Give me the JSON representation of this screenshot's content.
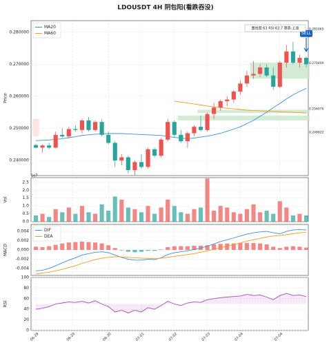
{
  "chart_data": {
    "type": "candlestick",
    "title": "LDOUSDT  4H  阴包阳(看跌吞没)",
    "info": "置信度:63  RSI:63.7  趋势:上涨",
    "price_label": "Price",
    "up_color": "#ef5350",
    "down_color": "#26a69a",
    "ylim": [
      0.2353,
      0.2836
    ],
    "yticks": [
      {
        "value": 0.24,
        "label": "0.240000"
      },
      {
        "value": 0.25,
        "label": "0.250000"
      },
      {
        "value": 0.26,
        "label": "0.260000"
      },
      {
        "value": 0.27,
        "label": "0.270000"
      },
      {
        "value": 0.28,
        "label": "0.280000"
      }
    ],
    "xticks": [
      {
        "value": 0,
        "label": "06-29"
      },
      {
        "value": 5.5,
        "label": "06-29"
      },
      {
        "value": 11,
        "label": "06-30"
      },
      {
        "value": 16,
        "label": "07-01"
      },
      {
        "value": 21,
        "label": "07-02"
      },
      {
        "value": 26,
        "label": "07-03"
      },
      {
        "value": 31,
        "label": "07-04"
      },
      {
        "value": 37,
        "label": "07-04"
      }
    ],
    "candles": [
      [
        0.2448,
        0.2452,
        0.2438,
        0.244
      ],
      [
        0.244,
        0.245,
        0.2425,
        0.2447
      ],
      [
        0.2447,
        0.2455,
        0.2435,
        0.244
      ],
      [
        0.244,
        0.249,
        0.2438,
        0.248
      ],
      [
        0.248,
        0.25,
        0.247,
        0.2475
      ],
      [
        0.2475,
        0.2505,
        0.2468,
        0.2498
      ],
      [
        0.2498,
        0.251,
        0.249,
        0.2495
      ],
      [
        0.2495,
        0.253,
        0.2485,
        0.2525
      ],
      [
        0.2525,
        0.2535,
        0.249,
        0.2495
      ],
      [
        0.2495,
        0.2525,
        0.249,
        0.252
      ],
      [
        0.252,
        0.2528,
        0.2475,
        0.248
      ],
      [
        0.248,
        0.249,
        0.245,
        0.2455
      ],
      [
        0.2455,
        0.246,
        0.238,
        0.24
      ],
      [
        0.24,
        0.242,
        0.2385,
        0.241
      ],
      [
        0.241,
        0.2415,
        0.236,
        0.237
      ],
      [
        0.237,
        0.24,
        0.2355,
        0.2395
      ],
      [
        0.2395,
        0.242,
        0.2375,
        0.238
      ],
      [
        0.238,
        0.244,
        0.2375,
        0.2435
      ],
      [
        0.2435,
        0.244,
        0.241,
        0.2415
      ],
      [
        0.2415,
        0.247,
        0.241,
        0.2465
      ],
      [
        0.2465,
        0.253,
        0.246,
        0.252
      ],
      [
        0.252,
        0.2525,
        0.247,
        0.248
      ],
      [
        0.248,
        0.2495,
        0.2455,
        0.246
      ],
      [
        0.246,
        0.249,
        0.244,
        0.2485
      ],
      [
        0.2485,
        0.251,
        0.2475,
        0.2505
      ],
      [
        0.2505,
        0.254,
        0.249,
        0.2495
      ],
      [
        0.2495,
        0.255,
        0.249,
        0.2545
      ],
      [
        0.2545,
        0.258,
        0.253,
        0.2565
      ],
      [
        0.2565,
        0.259,
        0.2555,
        0.2585
      ],
      [
        0.2585,
        0.26,
        0.257,
        0.259
      ],
      [
        0.259,
        0.262,
        0.258,
        0.2615
      ],
      [
        0.2615,
        0.265,
        0.2605,
        0.264
      ],
      [
        0.264,
        0.268,
        0.263,
        0.2665
      ],
      [
        0.2665,
        0.271,
        0.2655,
        0.267
      ],
      [
        0.267,
        0.27,
        0.266,
        0.269
      ],
      [
        0.269,
        0.27,
        0.266,
        0.2665
      ],
      [
        0.2665,
        0.269,
        0.262,
        0.263
      ],
      [
        0.263,
        0.271,
        0.2625,
        0.2705
      ],
      [
        0.2705,
        0.276,
        0.269,
        0.274
      ],
      [
        0.274,
        0.277,
        0.27,
        0.2705
      ],
      [
        0.2705,
        0.273,
        0.269,
        0.272
      ],
      [
        0.272,
        0.2725,
        0.269,
        0.27
      ]
    ],
    "series": [
      {
        "name": "MA20",
        "color": "#3b8fd9",
        "values": [
          0.2462,
          0.2463,
          0.2464,
          0.2466,
          0.2468,
          0.2471,
          0.2474,
          0.2478,
          0.248,
          0.2482,
          0.2483,
          0.2484,
          0.2484,
          0.2484,
          0.2483,
          0.2482,
          0.2481,
          0.248,
          0.2479,
          0.2478,
          0.2475,
          0.2472,
          0.247,
          0.2468,
          0.247,
          0.2473,
          0.2476,
          0.248,
          0.2485,
          0.2491,
          0.2498,
          0.2505,
          0.2515,
          0.2525,
          0.2538,
          0.255,
          0.2565,
          0.2578,
          0.2592,
          0.2605,
          0.2615,
          0.2625
        ]
      },
      {
        "name": "MA60",
        "color": "#f39c12",
        "values": [
          null,
          null,
          null,
          null,
          null,
          null,
          null,
          null,
          null,
          null,
          null,
          null,
          null,
          null,
          null,
          null,
          null,
          null,
          null,
          null,
          null,
          0.2585,
          0.2582,
          0.2579,
          0.2576,
          0.2573,
          0.257,
          0.2567,
          0.2565,
          0.2563,
          0.2561,
          0.2559,
          0.2557,
          0.2556,
          0.2555,
          0.2554,
          0.2553,
          0.2552,
          0.2551,
          0.255,
          0.2549,
          0.2548
        ]
      }
    ],
    "zones": [
      {
        "start": 22,
        "end": 42,
        "low": 0.2525,
        "high": 0.254,
        "color": "#c8e6c9"
      },
      {
        "start": 25,
        "end": 42,
        "low": 0.2548,
        "high": 0.2558,
        "color": "#c8e6c9"
      },
      {
        "start": 33,
        "end": 42,
        "low": 0.2655,
        "high": 0.2705,
        "color": "#c8e6c9"
      },
      {
        "start": 0,
        "end": 1,
        "low": 0.2475,
        "high": 0.253,
        "color": "#fde0e0"
      }
    ],
    "levels": [
      {
        "value": 0.281065,
        "label": "0.281065",
        "color": "#4caf50"
      },
      {
        "value": 0.2704,
        "label": "0.270400",
        "color": "#777777"
      },
      {
        "value": 0.25607,
        "label": "0.256070",
        "color": "#e57373"
      },
      {
        "value": 0.248822,
        "label": "0.248822",
        "color": "#e57373"
      }
    ],
    "signal": {
      "label": "SELL",
      "index": 41,
      "color": "#1565c0"
    },
    "volume": {
      "label": "Vol",
      "exponent": "1e7",
      "ylim": [
        0,
        2.8
      ],
      "yticks": [
        {
          "value": 0,
          "label": "0.0"
        },
        0.5,
        {
          "value": 1,
          "label": "1.0"
        },
        1.5,
        {
          "value": 2,
          "label": "2.0"
        },
        2.5
      ],
      "values": [
        0.4,
        0.5,
        0.3,
        0.8,
        0.6,
        0.9,
        0.5,
        1.0,
        0.6,
        0.5,
        1.1,
        0.7,
        1.6,
        1.4,
        0.9,
        0.8,
        0.6,
        1.0,
        0.5,
        0.9,
        1.4,
        1.0,
        0.6,
        0.5,
        0.8,
        0.9,
        2.75,
        0.7,
        1.0,
        0.9,
        0.6,
        0.5,
        0.8,
        1.1,
        0.6,
        0.7,
        0.5,
        1.3,
        0.9,
        0.4,
        0.5,
        0.4
      ]
    },
    "macd": {
      "label": "MACD",
      "ylim": [
        -0.0055,
        0.0055
      ],
      "yticks": [
        -0.004,
        -0.002,
        {
          "value": 0,
          "label": "0.000"
        },
        0.002,
        0.004
      ],
      "series": [
        {
          "name": "DIF",
          "color": "#3b8fd9",
          "values": [
            -0.0045,
            -0.0044,
            -0.004,
            -0.0034,
            -0.0028,
            -0.0022,
            -0.0017,
            -0.0011,
            -0.0008,
            -0.0005,
            -0.0004,
            -0.0006,
            -0.0011,
            -0.0016,
            -0.002,
            -0.0022,
            -0.0022,
            -0.002,
            -0.0021,
            -0.0017,
            -0.001,
            -0.0006,
            -0.0004,
            -0.0002,
            0.0001,
            0.0004,
            0.0008,
            0.0013,
            0.0018,
            0.0022,
            0.0026,
            0.003,
            0.0034,
            0.0037,
            0.0039,
            0.004,
            0.0037,
            0.0035,
            0.004,
            0.0043,
            0.0044,
            0.0043
          ]
        },
        {
          "name": "DEA",
          "color": "#f39c12",
          "values": [
            -0.0052,
            -0.005,
            -0.0048,
            -0.0045,
            -0.0042,
            -0.0038,
            -0.0034,
            -0.0029,
            -0.0025,
            -0.0021,
            -0.0018,
            -0.0016,
            -0.0015,
            -0.0015,
            -0.0016,
            -0.0017,
            -0.0018,
            -0.0018,
            -0.0019,
            -0.0018,
            -0.0016,
            -0.0014,
            -0.0012,
            -0.001,
            -0.0008,
            -0.0005,
            -0.0002,
            0.0001,
            0.0005,
            0.0008,
            0.0012,
            0.0015,
            0.0019,
            0.0022,
            0.0025,
            0.0028,
            0.003,
            0.0031,
            0.0033,
            0.0035,
            0.0037,
            0.0038
          ]
        }
      ],
      "histogram": [
        0.0007,
        0.0006,
        0.0008,
        0.0011,
        0.0014,
        0.0016,
        0.0017,
        0.0018,
        0.0017,
        0.0016,
        0.0014,
        0.001,
        0.0004,
        -0.0001,
        -0.0004,
        -0.0005,
        -0.0004,
        -0.0002,
        -0.0002,
        0.0001,
        0.0006,
        0.0008,
        0.0008,
        0.0008,
        0.0009,
        0.0009,
        0.001,
        0.0012,
        0.0013,
        0.0014,
        0.0014,
        0.0015,
        0.0015,
        0.0015,
        0.0014,
        0.0012,
        0.0007,
        0.0004,
        0.0007,
        0.0008,
        0.0007,
        0.0005
      ]
    },
    "rsi": {
      "label": "RSI",
      "color": "#ab47bc",
      "ylim": [
        0,
        100
      ],
      "yticks": [
        0,
        20,
        40,
        60,
        80,
        100
      ],
      "values": [
        40,
        42,
        45,
        50,
        52,
        54,
        53,
        55,
        52,
        56,
        50,
        45,
        35,
        38,
        33,
        38,
        35,
        43,
        40,
        47,
        55,
        50,
        47,
        52,
        54,
        53,
        58,
        60,
        62,
        63,
        64,
        65,
        68,
        66,
        67,
        63,
        58,
        66,
        70,
        66,
        67,
        64
      ]
    }
  }
}
